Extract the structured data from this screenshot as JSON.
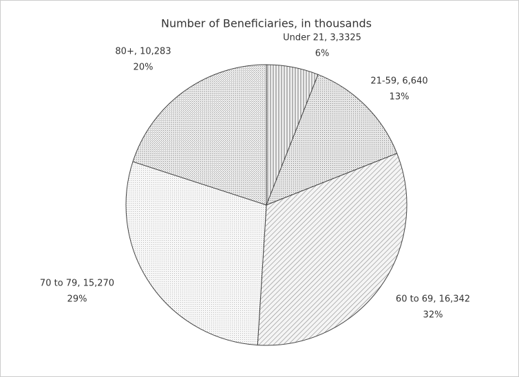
{
  "chart_data": {
    "type": "pie",
    "title": "Number of Beneficiaries, in thousands",
    "categories": [
      "Under 21, 3,3325",
      "21-59, 6,640",
      "60 to 69, 16,342",
      "70 to 79, 15,270",
      "80+, 10,283"
    ],
    "values": [
      6,
      13,
      32,
      29,
      20
    ],
    "value_labels": [
      "6%",
      "13%",
      "32%",
      "29%",
      "20%"
    ]
  }
}
